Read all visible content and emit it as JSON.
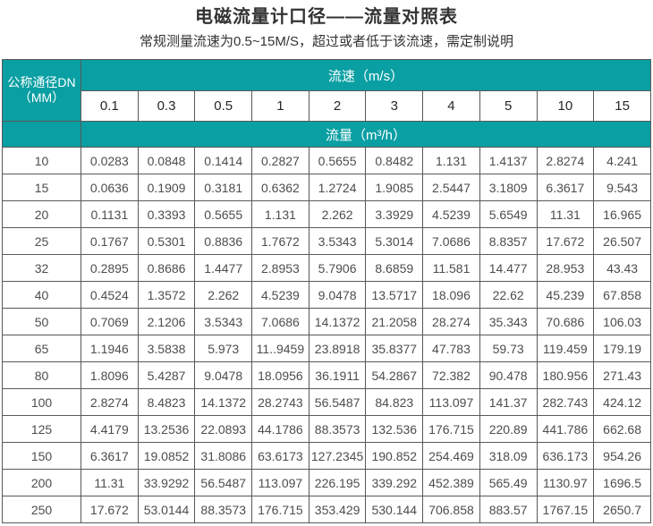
{
  "title": "电磁流量计口径——流量对照表",
  "subtitle": "常规测量流速为0.5~15M/S，超过或者低于该流速，需定制说明",
  "colors": {
    "header_teal": "#0a9fa3",
    "header_text": "#ffffff",
    "body_text": "#4d4d4d",
    "header_border": "#6e453a",
    "body_border": "#595959"
  },
  "chart_data": {
    "type": "table",
    "title": "电磁流量计口径——流量对照表",
    "subtitle": "常规测量流速为0.5~15M/S，超过或者低于该流速，需定制说明",
    "corner_header_line1": "公称通径DN",
    "corner_header_line2": "（MM）",
    "velocity_header": "流速（m/s）",
    "flow_header": "流量（m³/h）",
    "velocity_columns": [
      "0.1",
      "0.3",
      "0.5",
      "1",
      "2",
      "3",
      "4",
      "5",
      "10",
      "15"
    ],
    "rows": [
      {
        "dn": "10",
        "values": [
          "0.0283",
          "0.0848",
          "0.1414",
          "0.2827",
          "0.5655",
          "0.8482",
          "1.131",
          "1.4137",
          "2.8274",
          "4.241"
        ]
      },
      {
        "dn": "15",
        "values": [
          "0.0636",
          "0.1909",
          "0.3181",
          "0.6362",
          "1.2724",
          "1.9085",
          "2.5447",
          "3.1809",
          "6.3617",
          "9.543"
        ]
      },
      {
        "dn": "20",
        "values": [
          "0.1131",
          "0.3393",
          "0.5655",
          "1.131",
          "2.262",
          "3.3929",
          "4.5239",
          "5.6549",
          "11.31",
          "16.965"
        ]
      },
      {
        "dn": "25",
        "values": [
          "0.1767",
          "0.5301",
          "0.8836",
          "1.7672",
          "3.5343",
          "5.3014",
          "7.0686",
          "8.8357",
          "17.672",
          "26.507"
        ]
      },
      {
        "dn": "32",
        "values": [
          "0.2895",
          "0.8686",
          "1.4477",
          "2.8953",
          "5.7906",
          "8.6859",
          "11.581",
          "14.477",
          "28.953",
          "43.43"
        ]
      },
      {
        "dn": "40",
        "values": [
          "0.4524",
          "1.3572",
          "2.262",
          "4.5239",
          "9.0478",
          "13.5717",
          "18.096",
          "22.62",
          "45.239",
          "67.858"
        ]
      },
      {
        "dn": "50",
        "values": [
          "0.7069",
          "2.1206",
          "3.5343",
          "7.0686",
          "14.1372",
          "21.2058",
          "28.274",
          "35.343",
          "70.686",
          "106.03"
        ]
      },
      {
        "dn": "65",
        "values": [
          "1.1946",
          "3.5838",
          "5.973",
          "11..9459",
          "23.8918",
          "35.8377",
          "47.783",
          "59.73",
          "119.459",
          "179.19"
        ]
      },
      {
        "dn": "80",
        "values": [
          "1.8096",
          "5.4287",
          "9.0478",
          "18.0956",
          "36.1911",
          "54.2867",
          "72.382",
          "90.478",
          "180.956",
          "271.43"
        ]
      },
      {
        "dn": "100",
        "values": [
          "2.8274",
          "8.4823",
          "14.1372",
          "28.2743",
          "56.5487",
          "84.823",
          "113.097",
          "141.37",
          "282.743",
          "424.12"
        ]
      },
      {
        "dn": "125",
        "values": [
          "4.4179",
          "13.2536",
          "22.0893",
          "44.1786",
          "88.3573",
          "132.536",
          "176.715",
          "220.89",
          "441.786",
          "662.68"
        ]
      },
      {
        "dn": "150",
        "values": [
          "6.3617",
          "19.0852",
          "31.8086",
          "63.6173",
          "127.2345",
          "190.852",
          "254.469",
          "318.09",
          "636.173",
          "954.26"
        ]
      },
      {
        "dn": "200",
        "values": [
          "11.31",
          "33.9292",
          "56.5487",
          "113.097",
          "226.195",
          "339.292",
          "452.389",
          "565.49",
          "1130.97",
          "1696.5"
        ]
      },
      {
        "dn": "250",
        "values": [
          "17.672",
          "53.0144",
          "88.3573",
          "176.715",
          "353.429",
          "530.144",
          "706.858",
          "883.57",
          "1767.15",
          "2650.7"
        ]
      }
    ]
  }
}
